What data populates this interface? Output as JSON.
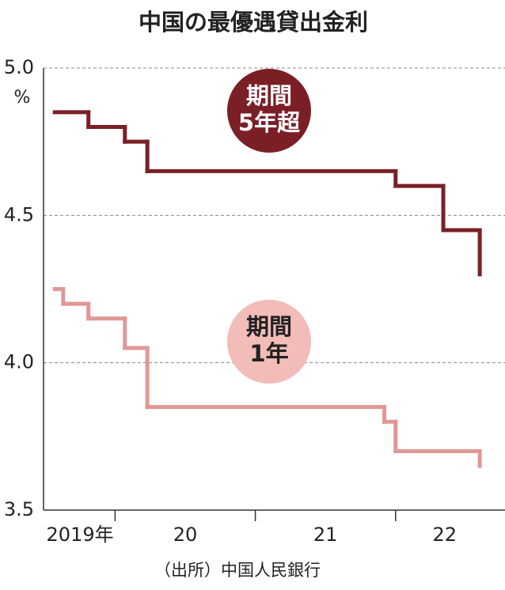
{
  "chart_data": {
    "type": "step",
    "title": "中国の最優遇貸出金利",
    "y_unit": "%",
    "source": "（出所）中国人民銀行",
    "xlim": [
      2019.49,
      2022.78
    ],
    "xticks": [
      {
        "value": 2019.75,
        "label": "2019年"
      },
      {
        "value": 2020.5,
        "label": "20"
      },
      {
        "value": 2021.5,
        "label": "21"
      },
      {
        "value": 2022.35,
        "label": "22"
      }
    ],
    "x_boundaries": [
      2020,
      2021,
      2022
    ],
    "ylim": [
      3.5,
      5.0
    ],
    "yticks": [
      {
        "value": 3.5,
        "label": "3.5"
      },
      {
        "value": 4.0,
        "label": "4.0"
      },
      {
        "value": 4.5,
        "label": "4.5"
      },
      {
        "value": 5.0,
        "label": "5.0"
      }
    ],
    "grid": true,
    "series": [
      {
        "name": [
          "期間",
          "5年超"
        ],
        "color": "#7b1f26",
        "label_color": "#ffffff",
        "x": [
          2019.57,
          2019.81,
          2020.07,
          2020.23,
          2022.0,
          2022.34,
          2022.6
        ],
        "values": [
          4.85,
          4.8,
          4.75,
          4.65,
          4.6,
          4.45,
          4.3
        ]
      },
      {
        "name": [
          "期間",
          "1年"
        ],
        "color": "#e09895",
        "badge_color": "#f2bcb8",
        "label_color": "#222222",
        "x": [
          2019.57,
          2019.63,
          2019.81,
          2020.07,
          2020.23,
          2021.92,
          2022.0,
          2022.6
        ],
        "values": [
          4.25,
          4.2,
          4.15,
          4.05,
          3.85,
          3.8,
          3.7,
          3.65
        ]
      }
    ]
  }
}
